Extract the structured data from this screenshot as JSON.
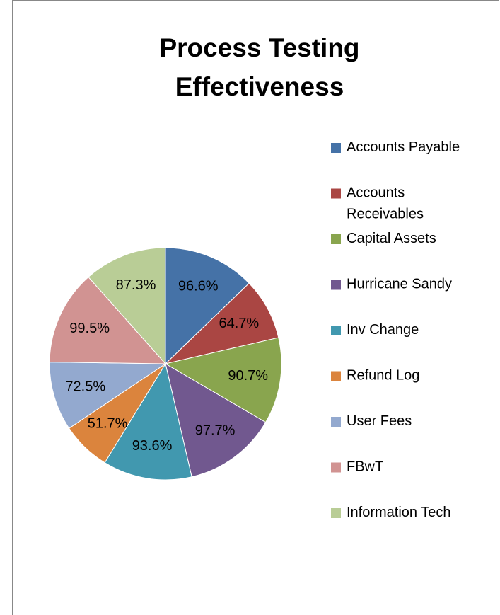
{
  "chart_data": {
    "type": "pie",
    "title": "Process Testing Effectiveness",
    "categories": [
      "Accounts Payable",
      "Accounts Receivables",
      "Capital Assets",
      "Hurricane Sandy",
      "Inv Change",
      "Refund Log",
      "User Fees",
      "FBwT",
      "Information Tech"
    ],
    "values": [
      96.6,
      64.7,
      90.7,
      97.7,
      93.6,
      51.7,
      72.5,
      99.5,
      87.3
    ],
    "value_labels": [
      "96.6%",
      "64.7%",
      "90.7%",
      "97.7%",
      "93.6%",
      "51.7%",
      "72.5%",
      "99.5%",
      "87.3%"
    ],
    "colors": [
      "#4572a7",
      "#aa4643",
      "#89a54e",
      "#71588f",
      "#4198af",
      "#db843d",
      "#93a9cf",
      "#d19392",
      "#b9cd96"
    ],
    "legend": "right"
  }
}
